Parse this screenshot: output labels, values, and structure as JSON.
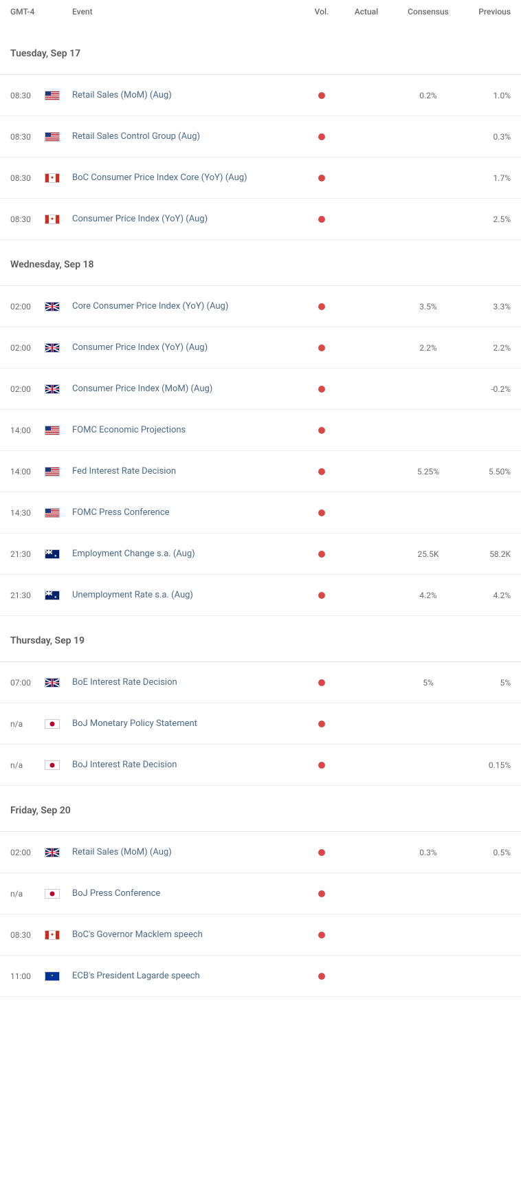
{
  "columns": {
    "time": "GMT-4",
    "event": "Event",
    "vol": "Vol.",
    "actual": "Actual",
    "consensus": "Consensus",
    "previous": "Previous"
  },
  "colors": {
    "vol_dot": "#d84848",
    "event_link": "#4a6a8a",
    "text": "#6b6b6b",
    "border": "#eeeeee"
  },
  "days": [
    {
      "label": "Tuesday, Sep 17",
      "events": [
        {
          "time": "08:30",
          "flag": "us",
          "event": "Retail Sales (MoM) (Aug)",
          "actual": "",
          "consensus": "0.2%",
          "previous": "1.0%"
        },
        {
          "time": "08:30",
          "flag": "us",
          "event": "Retail Sales Control Group (Aug)",
          "actual": "",
          "consensus": "",
          "previous": "0.3%"
        },
        {
          "time": "08:30",
          "flag": "ca",
          "event": "BoC Consumer Price Index Core (YoY) (Aug)",
          "actual": "",
          "consensus": "",
          "previous": "1.7%"
        },
        {
          "time": "08:30",
          "flag": "ca",
          "event": "Consumer Price Index (YoY) (Aug)",
          "actual": "",
          "consensus": "",
          "previous": "2.5%"
        }
      ]
    },
    {
      "label": "Wednesday, Sep 18",
      "events": [
        {
          "time": "02:00",
          "flag": "uk",
          "event": "Core Consumer Price Index (YoY) (Aug)",
          "actual": "",
          "consensus": "3.5%",
          "previous": "3.3%"
        },
        {
          "time": "02:00",
          "flag": "uk",
          "event": "Consumer Price Index (YoY) (Aug)",
          "actual": "",
          "consensus": "2.2%",
          "previous": "2.2%"
        },
        {
          "time": "02:00",
          "flag": "uk",
          "event": "Consumer Price Index (MoM) (Aug)",
          "actual": "",
          "consensus": "",
          "previous": "-0.2%"
        },
        {
          "time": "14:00",
          "flag": "us",
          "event": "FOMC Economic Projections",
          "actual": "",
          "consensus": "",
          "previous": ""
        },
        {
          "time": "14:00",
          "flag": "us",
          "event": "Fed Interest Rate Decision",
          "actual": "",
          "consensus": "5.25%",
          "previous": "5.50%"
        },
        {
          "time": "14:30",
          "flag": "us",
          "event": "FOMC Press Conference",
          "actual": "",
          "consensus": "",
          "previous": ""
        },
        {
          "time": "21:30",
          "flag": "au",
          "event": "Employment Change s.a. (Aug)",
          "actual": "",
          "consensus": "25.5K",
          "previous": "58.2K"
        },
        {
          "time": "21:30",
          "flag": "au",
          "event": "Unemployment Rate s.a. (Aug)",
          "actual": "",
          "consensus": "4.2%",
          "previous": "4.2%"
        }
      ]
    },
    {
      "label": "Thursday, Sep 19",
      "events": [
        {
          "time": "07:00",
          "flag": "uk",
          "event": "BoE Interest Rate Decision",
          "actual": "",
          "consensus": "5%",
          "previous": "5%"
        },
        {
          "time": "n/a",
          "flag": "jp",
          "event": "BoJ Monetary Policy Statement",
          "actual": "",
          "consensus": "",
          "previous": ""
        },
        {
          "time": "n/a",
          "flag": "jp",
          "event": "BoJ Interest Rate Decision",
          "actual": "",
          "consensus": "",
          "previous": "0.15%"
        }
      ]
    },
    {
      "label": "Friday, Sep 20",
      "events": [
        {
          "time": "02:00",
          "flag": "uk",
          "event": "Retail Sales (MoM) (Aug)",
          "actual": "",
          "consensus": "0.3%",
          "previous": "0.5%"
        },
        {
          "time": "n/a",
          "flag": "jp",
          "event": "BoJ Press Conference",
          "actual": "",
          "consensus": "",
          "previous": ""
        },
        {
          "time": "08:30",
          "flag": "ca",
          "event": "BoC's Governor Macklem speech",
          "actual": "",
          "consensus": "",
          "previous": ""
        },
        {
          "time": "11:00",
          "flag": "eu",
          "event": "ECB's President Lagarde speech",
          "actual": "",
          "consensus": "",
          "previous": ""
        }
      ]
    }
  ]
}
